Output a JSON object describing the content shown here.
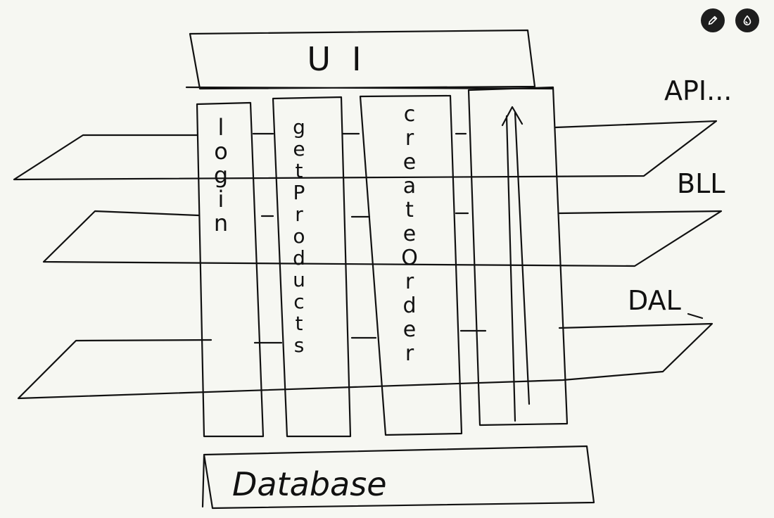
{
  "toolbar": {
    "pen_icon": "pen-icon",
    "ink_icon": "ink-drop-icon",
    "button_color": "#1e1e1e"
  },
  "diagram": {
    "ink_color": "#111111",
    "background": "#f6f7f2",
    "top_box_label": "UI",
    "bottom_box_label": "Database",
    "layer_labels": {
      "api": "API...",
      "bll": "BLL",
      "dal": "DAL"
    },
    "columns": [
      {
        "id": "login",
        "letters": [
          "l",
          "o",
          "g",
          "i",
          "n"
        ]
      },
      {
        "id": "get-products",
        "letters": [
          "g",
          "e",
          "t",
          "P",
          "r",
          "o",
          "d",
          "u",
          "c",
          "t",
          "s"
        ]
      },
      {
        "id": "create-order",
        "letters": [
          "c",
          "r",
          "e",
          "a",
          "t",
          "e",
          "O",
          "r",
          "d",
          "e",
          "r"
        ]
      }
    ]
  }
}
